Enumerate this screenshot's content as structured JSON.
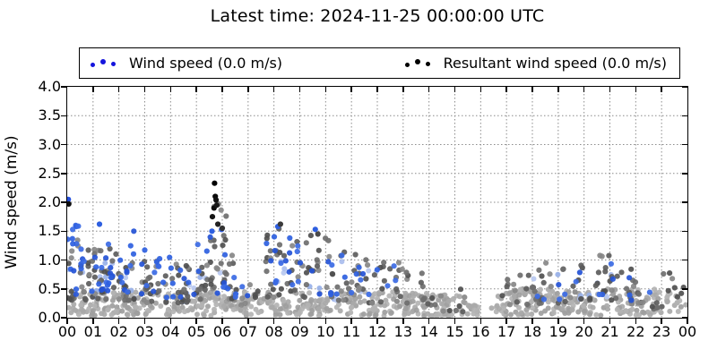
{
  "chart_data": {
    "type": "scatter",
    "title": "Latest time: 2024-11-25 00:00:00 UTC",
    "ylabel": "Wind speed (m/s)",
    "xlabel": "",
    "ylim": [
      0.0,
      4.0
    ],
    "xlim_hours": [
      0,
      24
    ],
    "ytick_values": [
      0.0,
      0.5,
      1.0,
      1.5,
      2.0,
      2.5,
      3.0,
      3.5,
      4.0
    ],
    "ytick_labels": [
      "0.0",
      "0.5",
      "1.0",
      "1.5",
      "2.0",
      "2.5",
      "3.0",
      "3.5",
      "4.0"
    ],
    "xtick_labels": [
      "00",
      "01",
      "02",
      "03",
      "04",
      "05",
      "06",
      "07",
      "08",
      "09",
      "10",
      "11",
      "12",
      "13",
      "14",
      "15",
      "16",
      "17",
      "18",
      "19",
      "20",
      "21",
      "22",
      "23",
      "00"
    ],
    "grid": "dotted",
    "grid_color": "#8c8c8c",
    "legend": {
      "position": "top",
      "entries": [
        {
          "label": "Wind speed (0.0 m/s)",
          "marker": "three-dots",
          "color": "#1414dd"
        },
        {
          "label": "Resultant wind speed (0.0 m/s)",
          "marker": "three-dots",
          "color": "#000000"
        }
      ]
    },
    "seed": 1337,
    "dot_radius": 3.1,
    "series": [
      {
        "name": "baseline-old-gray",
        "palette": [
          "#a9a9a9",
          "#b3b3b3",
          "#9e9e9e"
        ],
        "bias": 1.0,
        "radius": 3.0,
        "clusters": [
          [
            0,
            14.2,
            430,
            0.03,
            0.45
          ],
          [
            14.2,
            15.3,
            35,
            0.03,
            0.4
          ],
          [
            15.3,
            16.6,
            18,
            0.02,
            0.28
          ],
          [
            16.6,
            24,
            220,
            0.04,
            0.5
          ]
        ]
      },
      {
        "name": "wind-old-lightblue",
        "palette": [
          "#a9bdee",
          "#b7c8f0",
          "#97b0e8"
        ],
        "bias": 1.2,
        "radius": 3.0,
        "clusters": [
          [
            0,
            3,
            16,
            0.3,
            1.0
          ],
          [
            3,
            6,
            8,
            0.25,
            0.8
          ],
          [
            7.5,
            12,
            12,
            0.3,
            1.0
          ],
          [
            18,
            22,
            8,
            0.3,
            0.8
          ]
        ]
      },
      {
        "name": "resultant-wind-gray",
        "palette": [
          "#5c5c5c",
          "#6e6e6e",
          "#878787",
          "#4f4f4f"
        ],
        "bias": 1.5,
        "radius": 3.1,
        "clusters": [
          [
            0,
            1,
            26,
            0.3,
            1.35
          ],
          [
            1,
            2,
            24,
            0.3,
            1.2
          ],
          [
            2,
            3,
            22,
            0.3,
            1.1
          ],
          [
            3,
            4,
            20,
            0.25,
            1.0
          ],
          [
            4,
            5,
            20,
            0.25,
            0.95
          ],
          [
            5,
            5.55,
            12,
            0.3,
            1.0
          ],
          [
            5.55,
            6.15,
            22,
            0.5,
            2.0
          ],
          [
            6.15,
            6.7,
            12,
            0.3,
            1.2
          ],
          [
            6.7,
            7.6,
            8,
            0.2,
            0.6
          ],
          [
            7.6,
            8.8,
            26,
            0.35,
            1.55
          ],
          [
            8.8,
            10.3,
            26,
            0.35,
            1.45
          ],
          [
            10.3,
            11.6,
            22,
            0.3,
            1.15
          ],
          [
            11.6,
            13.1,
            20,
            0.25,
            1.0
          ],
          [
            13.1,
            14.3,
            14,
            0.2,
            0.85
          ],
          [
            14.3,
            15.4,
            8,
            0.1,
            0.5
          ],
          [
            16.8,
            18.1,
            16,
            0.2,
            0.8
          ],
          [
            18.1,
            19.6,
            18,
            0.25,
            0.95
          ],
          [
            19.6,
            21.3,
            24,
            0.3,
            1.08
          ],
          [
            21.3,
            22.6,
            16,
            0.2,
            0.98
          ],
          [
            22.6,
            24,
            14,
            0.15,
            0.8
          ]
        ]
      },
      {
        "name": "wind-speed-blue",
        "palette": [
          "#2e5fe0",
          "#3b6ae4",
          "#2453d6"
        ],
        "bias": 1.3,
        "radius": 3.1,
        "clusters": [
          [
            0,
            1,
            18,
            0.4,
            1.6
          ],
          [
            1,
            2,
            16,
            0.4,
            1.6
          ],
          [
            2,
            3,
            14,
            0.4,
            1.5
          ],
          [
            3,
            4,
            10,
            0.35,
            1.15
          ],
          [
            4,
            5,
            8,
            0.3,
            0.9
          ],
          [
            5,
            6.2,
            10,
            0.4,
            1.55
          ],
          [
            6.2,
            7,
            6,
            0.3,
            0.9
          ],
          [
            7.6,
            8.8,
            12,
            0.4,
            1.5
          ],
          [
            8.8,
            10.3,
            10,
            0.4,
            1.5
          ],
          [
            10.3,
            11.6,
            8,
            0.4,
            1.1
          ],
          [
            11.6,
            13,
            5,
            0.4,
            0.9
          ],
          [
            17.5,
            19.5,
            5,
            0.3,
            0.7
          ],
          [
            19.5,
            21.5,
            6,
            0.4,
            0.95
          ],
          [
            21.5,
            23.5,
            4,
            0.3,
            0.7
          ]
        ]
      }
    ],
    "features": [
      {
        "t": 0.04,
        "y": 2.05,
        "color": "#2450e0"
      },
      {
        "t": 0.06,
        "y": 1.97,
        "color": "#0d0d0d"
      },
      {
        "t": 1.25,
        "y": 1.62,
        "color": "#2e5fe0"
      },
      {
        "t": 5.6,
        "y": 1.5,
        "color": "#2e5fe0"
      },
      {
        "t": 5.62,
        "y": 1.75,
        "color": "#141414"
      },
      {
        "t": 5.68,
        "y": 1.9,
        "color": "#0a0a0a"
      },
      {
        "t": 5.7,
        "y": 2.33,
        "color": "#000000"
      },
      {
        "t": 5.73,
        "y": 2.1,
        "color": "#0a0a0a"
      },
      {
        "t": 5.76,
        "y": 2.04,
        "color": "#111111"
      },
      {
        "t": 5.79,
        "y": 1.95,
        "color": "#161616"
      },
      {
        "t": 5.83,
        "y": 1.62,
        "color": "#222222"
      },
      {
        "t": 6.0,
        "y": 1.55,
        "color": "#333333"
      },
      {
        "t": 8.15,
        "y": 1.58,
        "color": "#2e5fe0"
      },
      {
        "t": 8.25,
        "y": 1.62,
        "color": "#3a3a3a"
      },
      {
        "t": 9.6,
        "y": 1.53,
        "color": "#2e5fe0"
      },
      {
        "t": 9.7,
        "y": 1.45,
        "color": "#4a4a4a"
      }
    ]
  }
}
